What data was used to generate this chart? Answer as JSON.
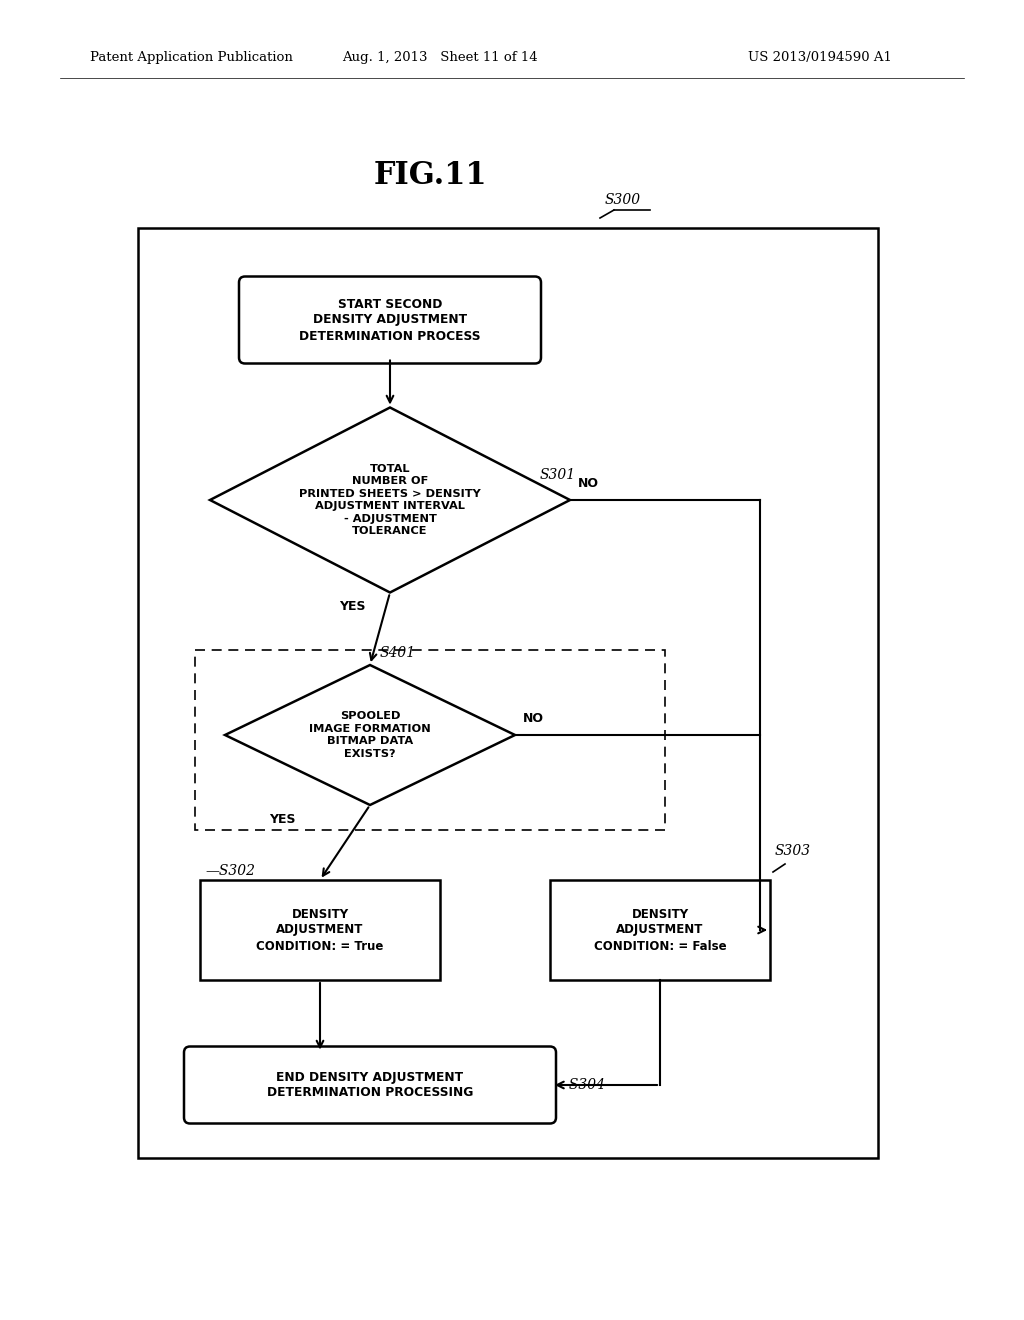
{
  "title": "FIG.11",
  "header_left": "Patent Application Publication",
  "header_mid": "Aug. 1, 2013   Sheet 11 of 14",
  "header_right": "US 2013/0194590 A1",
  "background_color": "#ffffff",
  "start_text": "START SECOND\nDENSITY ADJUSTMENT\nDETERMINATION PROCESS",
  "d1_text": "TOTAL\nNUMBER OF\nPRINTED SHEETS > DENSITY\nADJUSTMENT INTERVAL\n- ADJUSTMENT\nTOLERANCE",
  "d2_text": "SPOOLED\nIMAGE FORMATION\nBITMAP DATA\nEXISTS?",
  "bt_text": "DENSITY\nADJUSTMENT\nCONDITION: = True",
  "bf_text": "DENSITY\nADJUSTMENT\nCONDITION: = False",
  "end_text": "END DENSITY ADJUSTMENT\nDETERMINATION PROCESSING"
}
